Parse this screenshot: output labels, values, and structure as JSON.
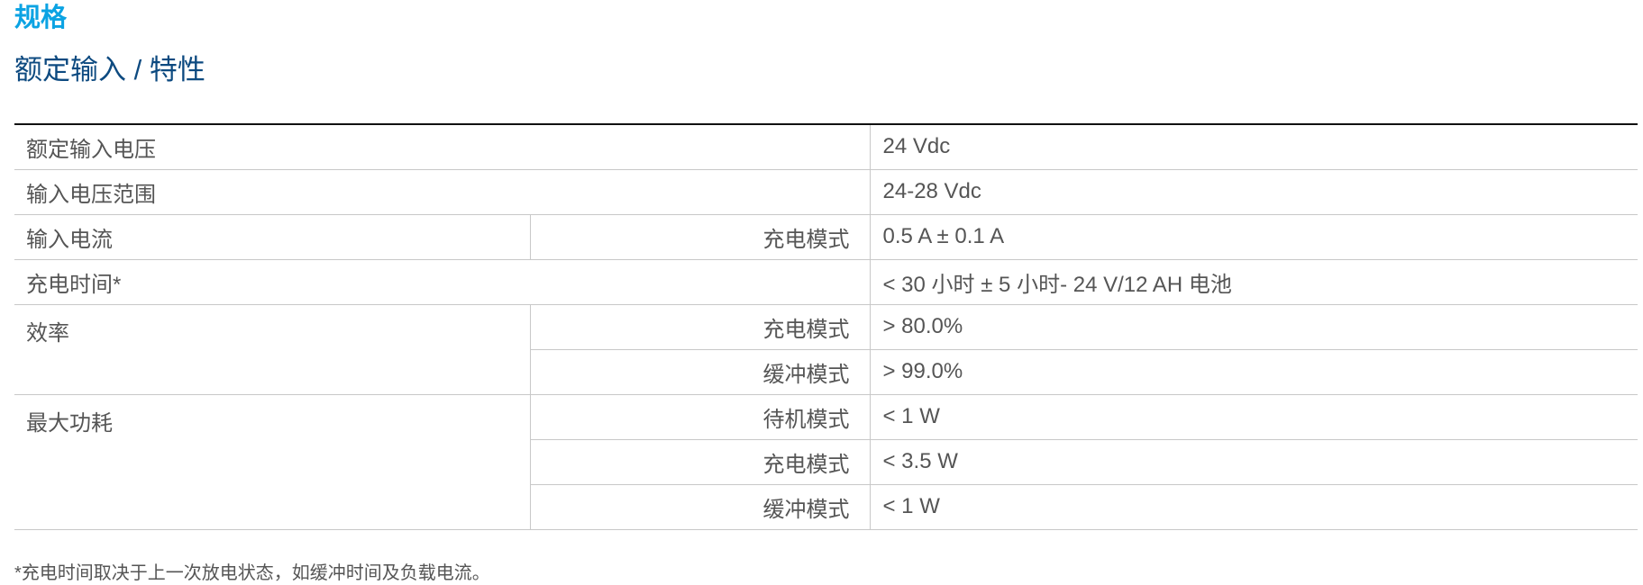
{
  "heading": "规格",
  "subheading": "额定输入 / 特性",
  "table": {
    "rated_voltage": {
      "label": "额定输入电压",
      "value": "24 Vdc"
    },
    "voltage_range": {
      "label": "输入电压范围",
      "value": "24-28 Vdc"
    },
    "input_current": {
      "label": "输入电流",
      "mode": "充电模式",
      "value": "0.5 A ± 0.1 A"
    },
    "charge_time": {
      "label": "充电时间*",
      "value": "< 30 小时 ± 5 小时- 24 V/12 AH 电池"
    },
    "efficiency": {
      "label": "效率",
      "rows": [
        {
          "mode": "充电模式",
          "value": "> 80.0%"
        },
        {
          "mode": "缓冲模式",
          "value": "> 99.0%"
        }
      ]
    },
    "max_power": {
      "label": "最大功耗",
      "rows": [
        {
          "mode": "待机模式",
          "value": "< 1 W"
        },
        {
          "mode": "充电模式",
          "value": "< 3.5 W"
        },
        {
          "mode": "缓冲模式",
          "value": "< 1 W"
        }
      ]
    }
  },
  "footnote": "*充电时间取决于上一次放电状态，如缓冲时间及负载电流。"
}
